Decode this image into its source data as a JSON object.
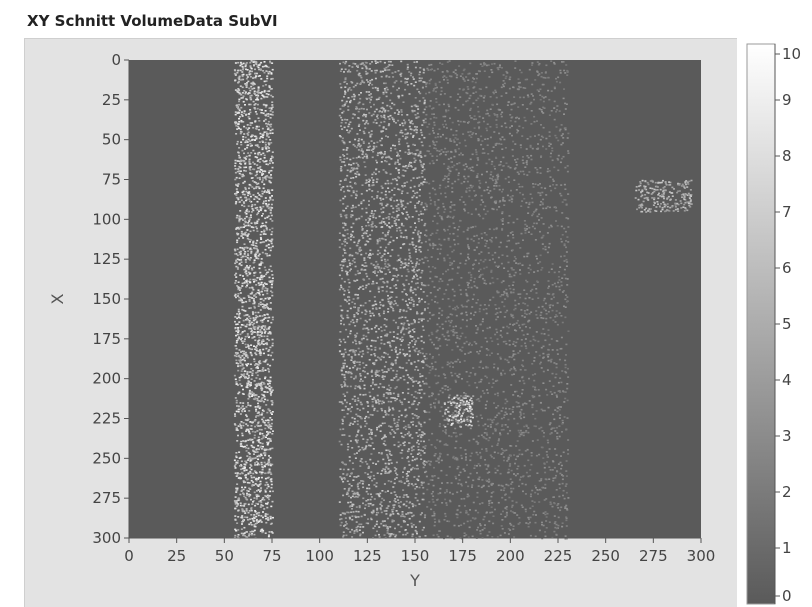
{
  "window": {
    "title": "XY Schnitt VolumeData SubVI"
  },
  "chart_data": {
    "type": "heatmap",
    "title": "",
    "xlabel": "Y",
    "ylabel": "X",
    "xlim": [
      0,
      300
    ],
    "ylim": [
      0,
      300
    ],
    "y_inverted": true,
    "x_ticks": [
      "0",
      "25",
      "50",
      "75",
      "100",
      "125",
      "150",
      "175",
      "200",
      "225",
      "250",
      "275",
      "300"
    ],
    "y_ticks": [
      "0",
      "25",
      "50",
      "75",
      "100",
      "125",
      "150",
      "175",
      "200",
      "225",
      "250",
      "275",
      "300"
    ],
    "colorbar": {
      "min": 0,
      "max": 10,
      "ticks": [
        "0",
        "1",
        "2",
        "3",
        "4",
        "5",
        "6",
        "7",
        "8",
        "9",
        "10"
      ],
      "low_color": "#5a5a5a",
      "high_color": "#ffffff"
    },
    "background_value": 0,
    "features": [
      {
        "label": "bright curved band",
        "y_from": 55,
        "y_to": 75,
        "x_from": 0,
        "x_to": 300,
        "intensity": 8
      },
      {
        "label": "textured band",
        "y_from": 110,
        "y_to": 155,
        "x_from": 0,
        "x_to": 300,
        "intensity": 6
      },
      {
        "label": "sparse region",
        "y_from": 155,
        "y_to": 230,
        "x_from": 0,
        "x_to": 300,
        "intensity": 3
      },
      {
        "label": "bright spot",
        "y_from": 165,
        "y_to": 180,
        "x_from": 210,
        "x_to": 230,
        "intensity": 8
      },
      {
        "label": "blob upper right",
        "y_from": 265,
        "y_to": 295,
        "x_from": 75,
        "x_to": 95,
        "intensity": 6
      }
    ]
  }
}
